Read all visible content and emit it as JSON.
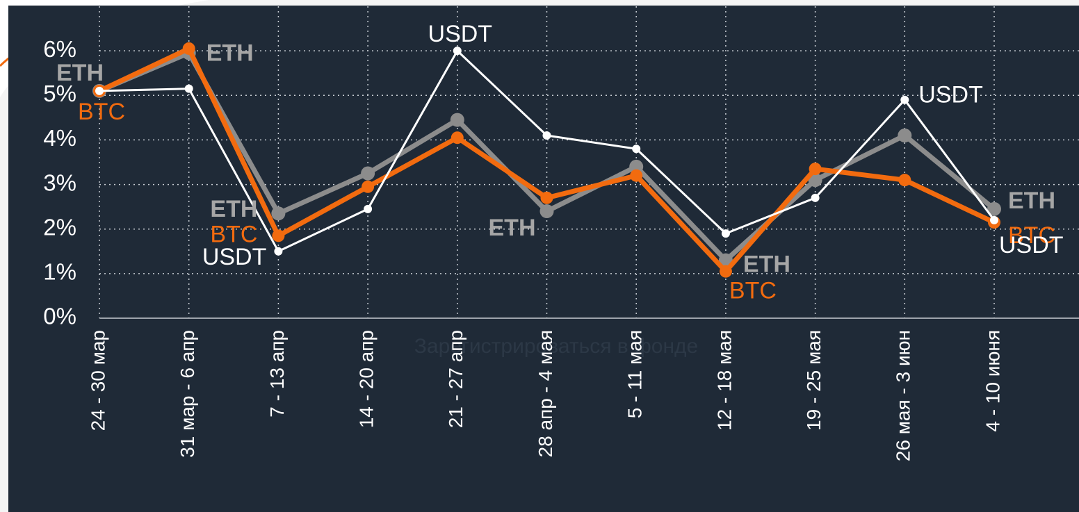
{
  "chart_data": {
    "type": "line",
    "categories": [
      "24 - 30 мар",
      "31 мар - 6 апр",
      "7 - 13 апр",
      "14 - 20 апр",
      "21 - 27 апр",
      "28 апр - 4 мая",
      "5 - 11 мая",
      "12 - 18 мая",
      "19 - 25 мая",
      "26 мая - 3 июн",
      "4 - 10 июня"
    ],
    "series": [
      {
        "name": "BTC",
        "color": "#f26b0f",
        "values": [
          5.1,
          6.05,
          1.85,
          2.95,
          4.05,
          2.7,
          3.2,
          1.05,
          3.35,
          3.1,
          2.15
        ]
      },
      {
        "name": "ETH",
        "color": "#8c8c8c",
        "values": [
          5.1,
          5.95,
          2.35,
          3.25,
          4.45,
          2.4,
          3.4,
          1.3,
          3.1,
          4.1,
          2.45
        ]
      },
      {
        "name": "USDT",
        "color": "#ffffff",
        "values": [
          5.1,
          5.15,
          1.5,
          2.45,
          6.0,
          4.1,
          3.8,
          1.9,
          2.7,
          4.9,
          2.2
        ]
      }
    ],
    "ylim": [
      0,
      7
    ],
    "yticks": [
      {
        "value": 0,
        "label": "0%"
      },
      {
        "value": 1,
        "label": "1%"
      },
      {
        "value": 2,
        "label": "2%"
      },
      {
        "value": 3,
        "label": "3%"
      },
      {
        "value": 4,
        "label": "4%"
      },
      {
        "value": 5,
        "label": "5%"
      },
      {
        "value": 6,
        "label": "6%"
      }
    ],
    "grid": true,
    "watermark": "Зарегистрироваться в фонде"
  }
}
